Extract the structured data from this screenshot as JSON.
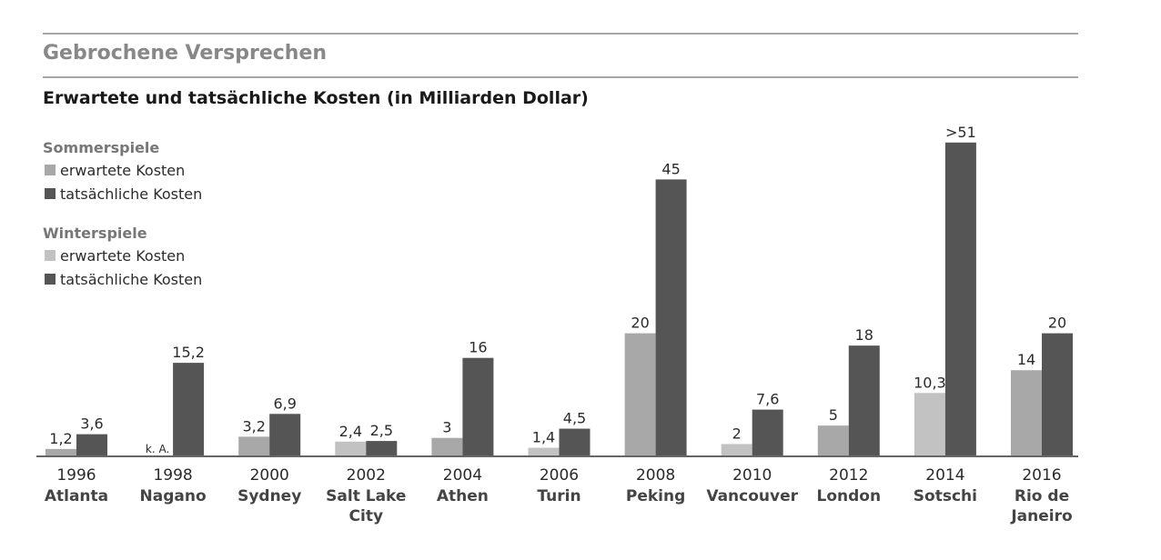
{
  "title": "Gebrochene Versprechen",
  "subtitle": "Erwartete und tatsächliche Kosten (in Milliarden Dollar)",
  "legend": {
    "summer_heading": "Sommerspiele",
    "winter_heading": "Winterspiele",
    "expected_label": "erwartete Kosten",
    "actual_label": "tatsächliche Kosten"
  },
  "colors": {
    "summer_expected": "#a8a8a8",
    "winter_expected": "#c2c2c2",
    "actual": "#555555",
    "rule": "#8a8a8a",
    "axis": "#666666"
  },
  "chart_data": {
    "type": "bar",
    "ylim": [
      0,
      52
    ],
    "categories": [
      {
        "year": "1996",
        "city": [
          "Atlanta"
        ],
        "season": "summer"
      },
      {
        "year": "1998",
        "city": [
          "Nagano"
        ],
        "season": "winter"
      },
      {
        "year": "2000",
        "city": [
          "Sydney"
        ],
        "season": "summer"
      },
      {
        "year": "2002",
        "city": [
          "Salt Lake",
          "City"
        ],
        "season": "winter"
      },
      {
        "year": "2004",
        "city": [
          "Athen"
        ],
        "season": "summer"
      },
      {
        "year": "2006",
        "city": [
          "Turin"
        ],
        "season": "winter"
      },
      {
        "year": "2008",
        "city": [
          "Peking"
        ],
        "season": "summer"
      },
      {
        "year": "2010",
        "city": [
          "Vancouver"
        ],
        "season": "winter"
      },
      {
        "year": "2012",
        "city": [
          "London"
        ],
        "season": "summer"
      },
      {
        "year": "2014",
        "city": [
          "Sotschi"
        ],
        "season": "winter"
      },
      {
        "year": "2016",
        "city": [
          "Rio de",
          "Janeiro"
        ],
        "season": "summer"
      }
    ],
    "series": [
      {
        "name": "erwartete Kosten",
        "values": [
          1.2,
          null,
          3.2,
          2.4,
          3,
          1.4,
          20,
          2,
          5,
          10.3,
          14
        ],
        "labels": [
          "1,2",
          "k. A.",
          "3,2",
          "2,4",
          "3",
          "1,4",
          "20",
          "2",
          "5",
          "10,3",
          "14"
        ]
      },
      {
        "name": "tatsächliche Kosten",
        "values": [
          3.6,
          15.2,
          6.9,
          2.5,
          16,
          4.5,
          45,
          7.6,
          18,
          51,
          20
        ],
        "labels": [
          "3,6",
          "15,2",
          "6,9",
          "2,5",
          "16",
          "4,5",
          "45",
          "7,6",
          "18",
          ">51",
          "20"
        ]
      }
    ]
  }
}
